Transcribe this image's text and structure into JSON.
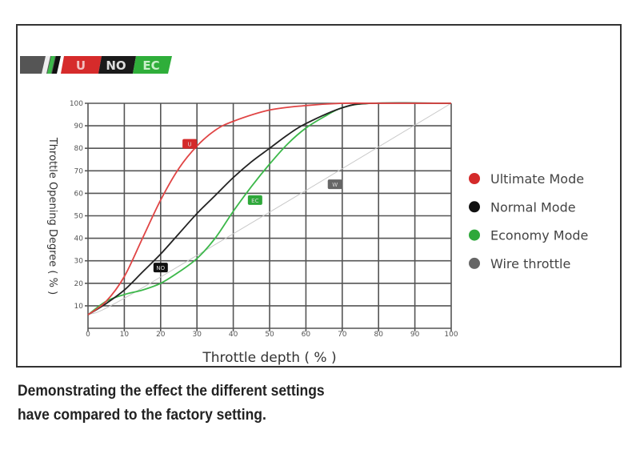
{
  "banner": {
    "labels": [
      "U",
      "NO",
      "EC"
    ],
    "colors": [
      "#d62b2b",
      "#1a1a1a",
      "#2fae3a"
    ]
  },
  "caption": {
    "line1": "Demonstrating the effect the different settings",
    "line2": "have compared to the factory setting."
  },
  "chart_data": {
    "type": "line",
    "xlabel": "Throttle depth ( % )",
    "ylabel": "Throttle Opening Degree ( % )",
    "xlim": [
      0,
      100
    ],
    "ylim": [
      0,
      100
    ],
    "xticks": [
      0,
      10,
      20,
      30,
      40,
      50,
      60,
      70,
      80,
      90,
      100
    ],
    "yticks": [
      10,
      20,
      30,
      40,
      50,
      60,
      70,
      80,
      90,
      100
    ],
    "grid": true,
    "legend_placement": "right",
    "series": [
      {
        "name": "Ultimate Mode",
        "badge": "U",
        "color": "#e04545",
        "label_at": [
          28,
          82
        ],
        "x": [
          0,
          5,
          10,
          15,
          20,
          25,
          30,
          35,
          40,
          50,
          60,
          70,
          80,
          100
        ],
        "y": [
          6,
          12,
          23,
          40,
          57,
          71,
          81,
          88,
          92,
          97,
          99,
          100,
          100,
          100
        ]
      },
      {
        "name": "Normal Mode",
        "badge": "NO",
        "color": "#222222",
        "label_at": [
          20,
          27
        ],
        "x": [
          0,
          5,
          10,
          15,
          20,
          25,
          30,
          35,
          40,
          45,
          50,
          55,
          60,
          70,
          78,
          100
        ],
        "y": [
          6,
          11,
          17,
          25,
          33,
          42,
          51,
          59,
          67,
          74,
          80,
          86,
          91,
          98,
          100,
          100
        ]
      },
      {
        "name": "Economy Mode",
        "badge": "EC",
        "color": "#3cb84a",
        "label_at": [
          46,
          57
        ],
        "x": [
          0,
          5,
          10,
          15,
          20,
          25,
          30,
          35,
          40,
          45,
          50,
          55,
          60,
          65,
          70,
          78,
          100
        ],
        "y": [
          6,
          12,
          15,
          17,
          20,
          25,
          31,
          40,
          52,
          63,
          73,
          82,
          89,
          94,
          98,
          100,
          100
        ]
      },
      {
        "name": "Wire throttle",
        "badge": "W",
        "color": "#c8c8c8",
        "label_at": [
          68,
          64
        ],
        "x": [
          0,
          15,
          100
        ],
        "y": [
          6,
          18,
          100
        ]
      }
    ],
    "legend_colors": [
      "#d42a2a",
      "#111111",
      "#2ea83a",
      "#666666"
    ]
  }
}
